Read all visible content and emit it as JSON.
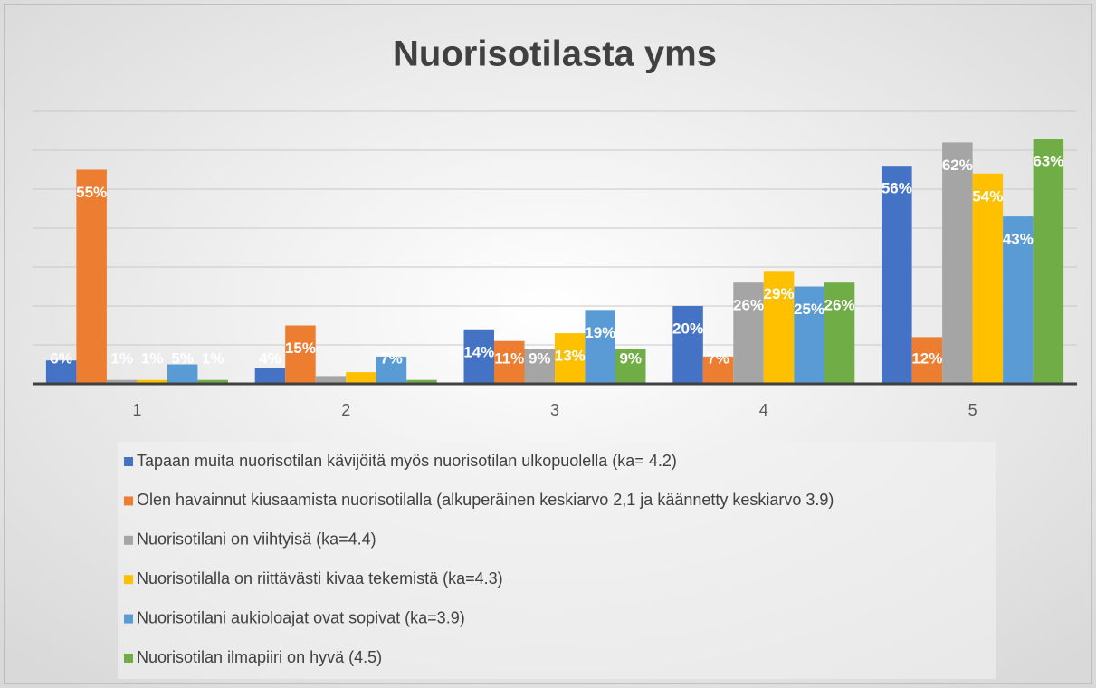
{
  "chart_data": {
    "type": "bar",
    "title": "Nuorisotilasta yms",
    "categories": [
      "1",
      "2",
      "3",
      "4",
      "5"
    ],
    "ylim": [
      0,
      70
    ],
    "yticks": [
      0,
      10,
      20,
      30,
      40,
      50,
      60,
      70
    ],
    "grid": true,
    "series": [
      {
        "name": "Tapaan muita nuorisotilan kävijöitä myös nuorisotilan ulkopuolella (ka= 4.2)",
        "color": "#4472c4",
        "values": [
          6,
          4,
          14,
          20,
          56
        ],
        "value_labels": [
          "6%",
          "4%",
          "14%",
          "20%",
          "56%"
        ]
      },
      {
        "name": "Olen havainnut kiusaamista nuorisotilalla (alkuperäinen keskiarvo 2,1 ja käännetty keskiarvo 3.9)",
        "color": "#ed7d31",
        "values": [
          55,
          15,
          11,
          7,
          12
        ],
        "value_labels": [
          "55%",
          "15%",
          "11%",
          "7%",
          "12%"
        ]
      },
      {
        "name": "Nuorisotilani on viihtyisä (ka=4.4)",
        "color": "#a5a5a5",
        "values": [
          1,
          2,
          9,
          26,
          62
        ],
        "value_labels": [
          "1%",
          null,
          "9%",
          "26%",
          "62%"
        ]
      },
      {
        "name": "Nuorisotilalla on riittävästi kivaa tekemistä (ka=4.3)",
        "color": "#ffc000",
        "values": [
          1,
          3,
          13,
          29,
          54
        ],
        "value_labels": [
          "1%",
          null,
          "13%",
          "29%",
          "54%"
        ]
      },
      {
        "name": "Nuorisotilani aukioloajat ovat sopivat (ka=3.9)",
        "color": "#5b9bd5",
        "values": [
          5,
          7,
          19,
          25,
          43
        ],
        "value_labels": [
          "5%",
          "7%",
          "19%",
          "25%",
          "43%"
        ]
      },
      {
        "name": "Nuorisotilan ilmapiiri on hyvä (4.5)",
        "color": "#70ad47",
        "values": [
          1,
          1,
          9,
          26,
          63
        ],
        "value_labels": [
          "1%",
          null,
          "9%",
          "26%",
          "63%"
        ]
      }
    ]
  }
}
